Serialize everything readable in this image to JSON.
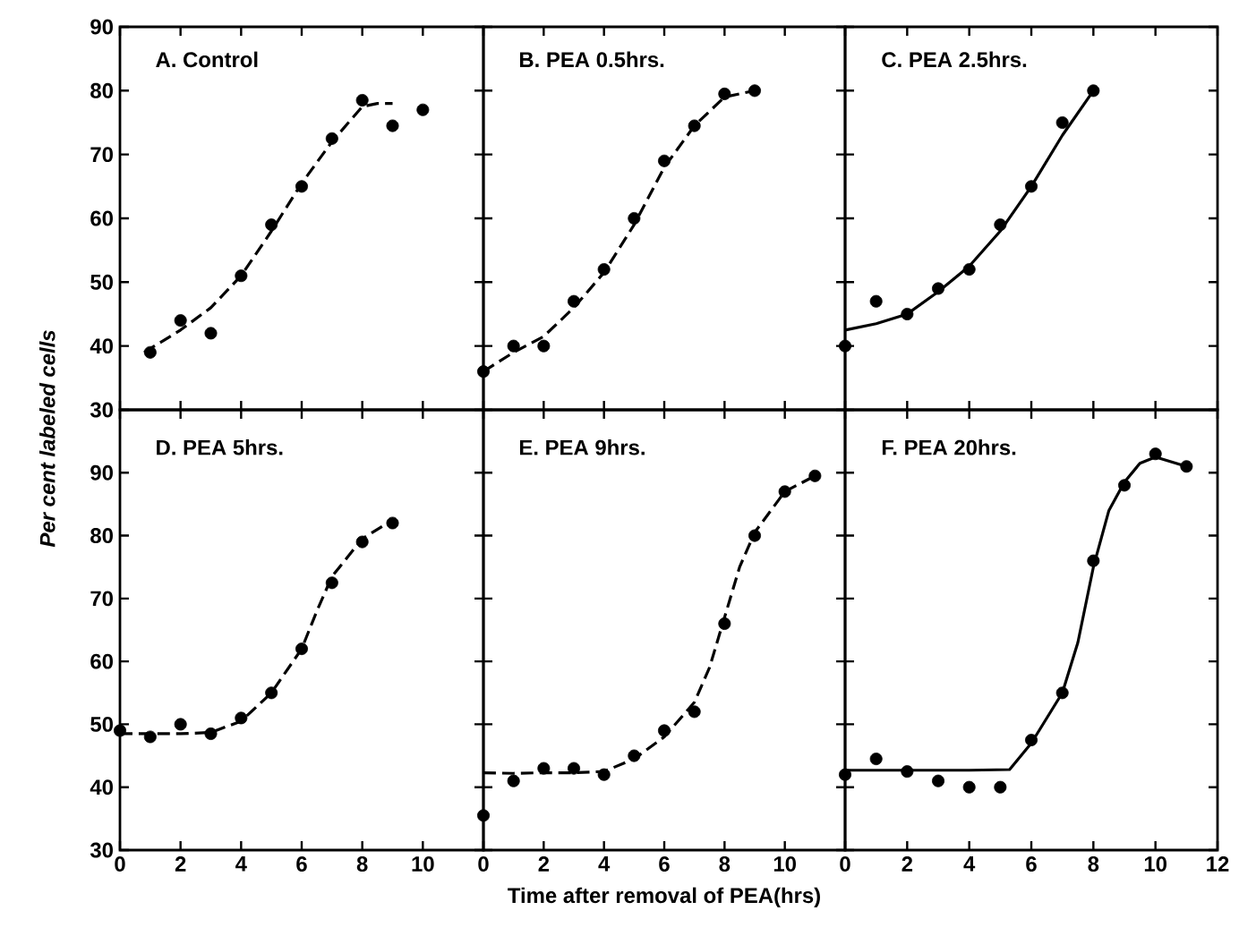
{
  "chart_data": [
    {
      "type": "scatter",
      "title": "A. Control",
      "xlim": [
        0,
        12
      ],
      "ylim": [
        30,
        90
      ],
      "xticks": [
        0,
        2,
        4,
        6,
        8,
        10
      ],
      "yticks": [
        30,
        40,
        50,
        60,
        70,
        80,
        90
      ],
      "tick_labels": "y",
      "series": [
        {
          "color": "#000000",
          "marker": "circle",
          "x": [
            1,
            2,
            3,
            4,
            5,
            6,
            7,
            8,
            9,
            10
          ],
          "values": [
            39,
            44,
            42,
            51,
            59,
            65,
            72.5,
            78.5,
            74.5,
            77
          ]
        },
        {
          "type": "line",
          "color": "#000000",
          "marker": "none",
          "line_style": "dashed",
          "x": [
            0.8,
            2,
            3,
            4,
            5,
            6,
            7,
            8,
            8.5,
            9
          ],
          "values": [
            39,
            42.5,
            46,
            51,
            58,
            65.5,
            72,
            77.5,
            78,
            78
          ]
        }
      ]
    },
    {
      "type": "scatter",
      "title": "B. PEA 0.5hrs.",
      "xlim": [
        0,
        12
      ],
      "ylim": [
        30,
        90
      ],
      "xticks": [
        0,
        2,
        4,
        6,
        8,
        10
      ],
      "yticks": [
        30,
        40,
        50,
        60,
        70,
        80,
        90
      ],
      "tick_labels": false,
      "series": [
        {
          "color": "#000000",
          "marker": "circle",
          "x": [
            0,
            1,
            2,
            3,
            4,
            5,
            6,
            7,
            8,
            9
          ],
          "values": [
            36,
            40,
            40,
            47,
            52,
            60,
            69,
            74.5,
            79.5,
            80
          ]
        },
        {
          "type": "line",
          "color": "#000000",
          "marker": "none",
          "line_style": "dashed",
          "x": [
            0,
            1,
            2,
            3,
            4,
            5,
            6,
            7,
            8,
            9
          ],
          "values": [
            36,
            39,
            41.5,
            46,
            51.5,
            59,
            68,
            74.5,
            79,
            80
          ]
        }
      ]
    },
    {
      "type": "scatter",
      "title": "C. PEA 2.5hrs.",
      "xlim": [
        0,
        12
      ],
      "ylim": [
        30,
        90
      ],
      "xticks": [
        0,
        2,
        4,
        6,
        8,
        10,
        12
      ],
      "yticks": [
        30,
        40,
        50,
        60,
        70,
        80,
        90
      ],
      "tick_labels": false,
      "series": [
        {
          "color": "#000000",
          "marker": "circle",
          "x": [
            0,
            1,
            2,
            3,
            4,
            5,
            6,
            7,
            8
          ],
          "values": [
            40,
            47,
            45,
            49,
            52,
            59,
            65,
            75,
            80
          ]
        },
        {
          "type": "line",
          "color": "#000000",
          "marker": "none",
          "line_style": "solid",
          "x": [
            0,
            1,
            2,
            3,
            4,
            5,
            6,
            7,
            8
          ],
          "values": [
            42.5,
            43.5,
            45,
            48.5,
            52.5,
            58,
            65,
            73,
            80
          ]
        }
      ]
    },
    {
      "type": "scatter",
      "title": "D. PEA 5hrs.",
      "ylabel": "Per cent labeled cells",
      "xlim": [
        0,
        12
      ],
      "ylim": [
        30,
        100
      ],
      "xticks": [
        0,
        2,
        4,
        6,
        8,
        10
      ],
      "yticks": [
        30,
        40,
        50,
        60,
        70,
        80,
        90
      ],
      "series": [
        {
          "color": "#000000",
          "marker": "circle",
          "x": [
            0,
            1,
            2,
            3,
            4,
            5,
            6,
            7,
            8,
            9
          ],
          "values": [
            49,
            48,
            50,
            48.5,
            51,
            55,
            62,
            72.5,
            79,
            82
          ]
        },
        {
          "type": "line",
          "color": "#000000",
          "marker": "none",
          "line_style": "dashed",
          "x": [
            0,
            1,
            2,
            3,
            4,
            5,
            6,
            6.5,
            7,
            8,
            9
          ],
          "values": [
            48.5,
            48.5,
            48.5,
            48.7,
            50.5,
            55,
            62,
            68,
            73.5,
            79.5,
            82.5
          ]
        }
      ]
    },
    {
      "type": "scatter",
      "title": "E. PEA 9hrs.",
      "xlabel": "Time after removal of PEA(hrs)",
      "xlim": [
        0,
        12
      ],
      "ylim": [
        30,
        100
      ],
      "xticks": [
        0,
        2,
        4,
        6,
        8,
        10
      ],
      "yticks": [
        30,
        40,
        50,
        60,
        70,
        80,
        90
      ],
      "tick_labels": "x",
      "series": [
        {
          "color": "#000000",
          "marker": "circle",
          "x": [
            0,
            1,
            2,
            3,
            4,
            5,
            6,
            7,
            8,
            9,
            10,
            11
          ],
          "values": [
            35.5,
            41,
            43,
            43,
            42,
            45,
            49,
            52,
            66,
            80,
            87,
            89.5
          ]
        },
        {
          "type": "line",
          "color": "#000000",
          "marker": "none",
          "line_style": "dashed",
          "x": [
            0,
            1,
            2,
            3,
            4,
            5,
            6,
            7,
            7.5,
            8,
            8.5,
            9,
            10,
            11
          ],
          "values": [
            42.3,
            42.2,
            42.3,
            42.3,
            42.5,
            44.5,
            48,
            53.5,
            59,
            67,
            75,
            80.5,
            87,
            89.5
          ]
        }
      ]
    },
    {
      "type": "scatter",
      "title": "F. PEA 20hrs.",
      "xlim": [
        0,
        12
      ],
      "ylim": [
        30,
        100
      ],
      "xticks": [
        0,
        2,
        4,
        6,
        8,
        10,
        12
      ],
      "yticks": [
        30,
        40,
        50,
        60,
        70,
        80,
        90
      ],
      "tick_labels": "x",
      "series": [
        {
          "color": "#000000",
          "marker": "circle",
          "x": [
            0,
            1,
            2,
            3,
            4,
            5,
            6,
            7,
            8,
            9,
            10,
            11
          ],
          "values": [
            42,
            44.5,
            42.5,
            41,
            40,
            40,
            47.5,
            55,
            76,
            88,
            93,
            91
          ]
        },
        {
          "type": "line",
          "color": "#000000",
          "marker": "none",
          "line_style": "solid",
          "x": [
            0,
            2,
            4,
            5.3,
            6,
            7,
            7.5,
            8,
            8.5,
            9,
            9.5,
            10,
            11
          ],
          "values": [
            42.7,
            42.7,
            42.7,
            42.8,
            47,
            55,
            63,
            75,
            84,
            88.5,
            91.5,
            92.5,
            91
          ]
        }
      ]
    }
  ]
}
